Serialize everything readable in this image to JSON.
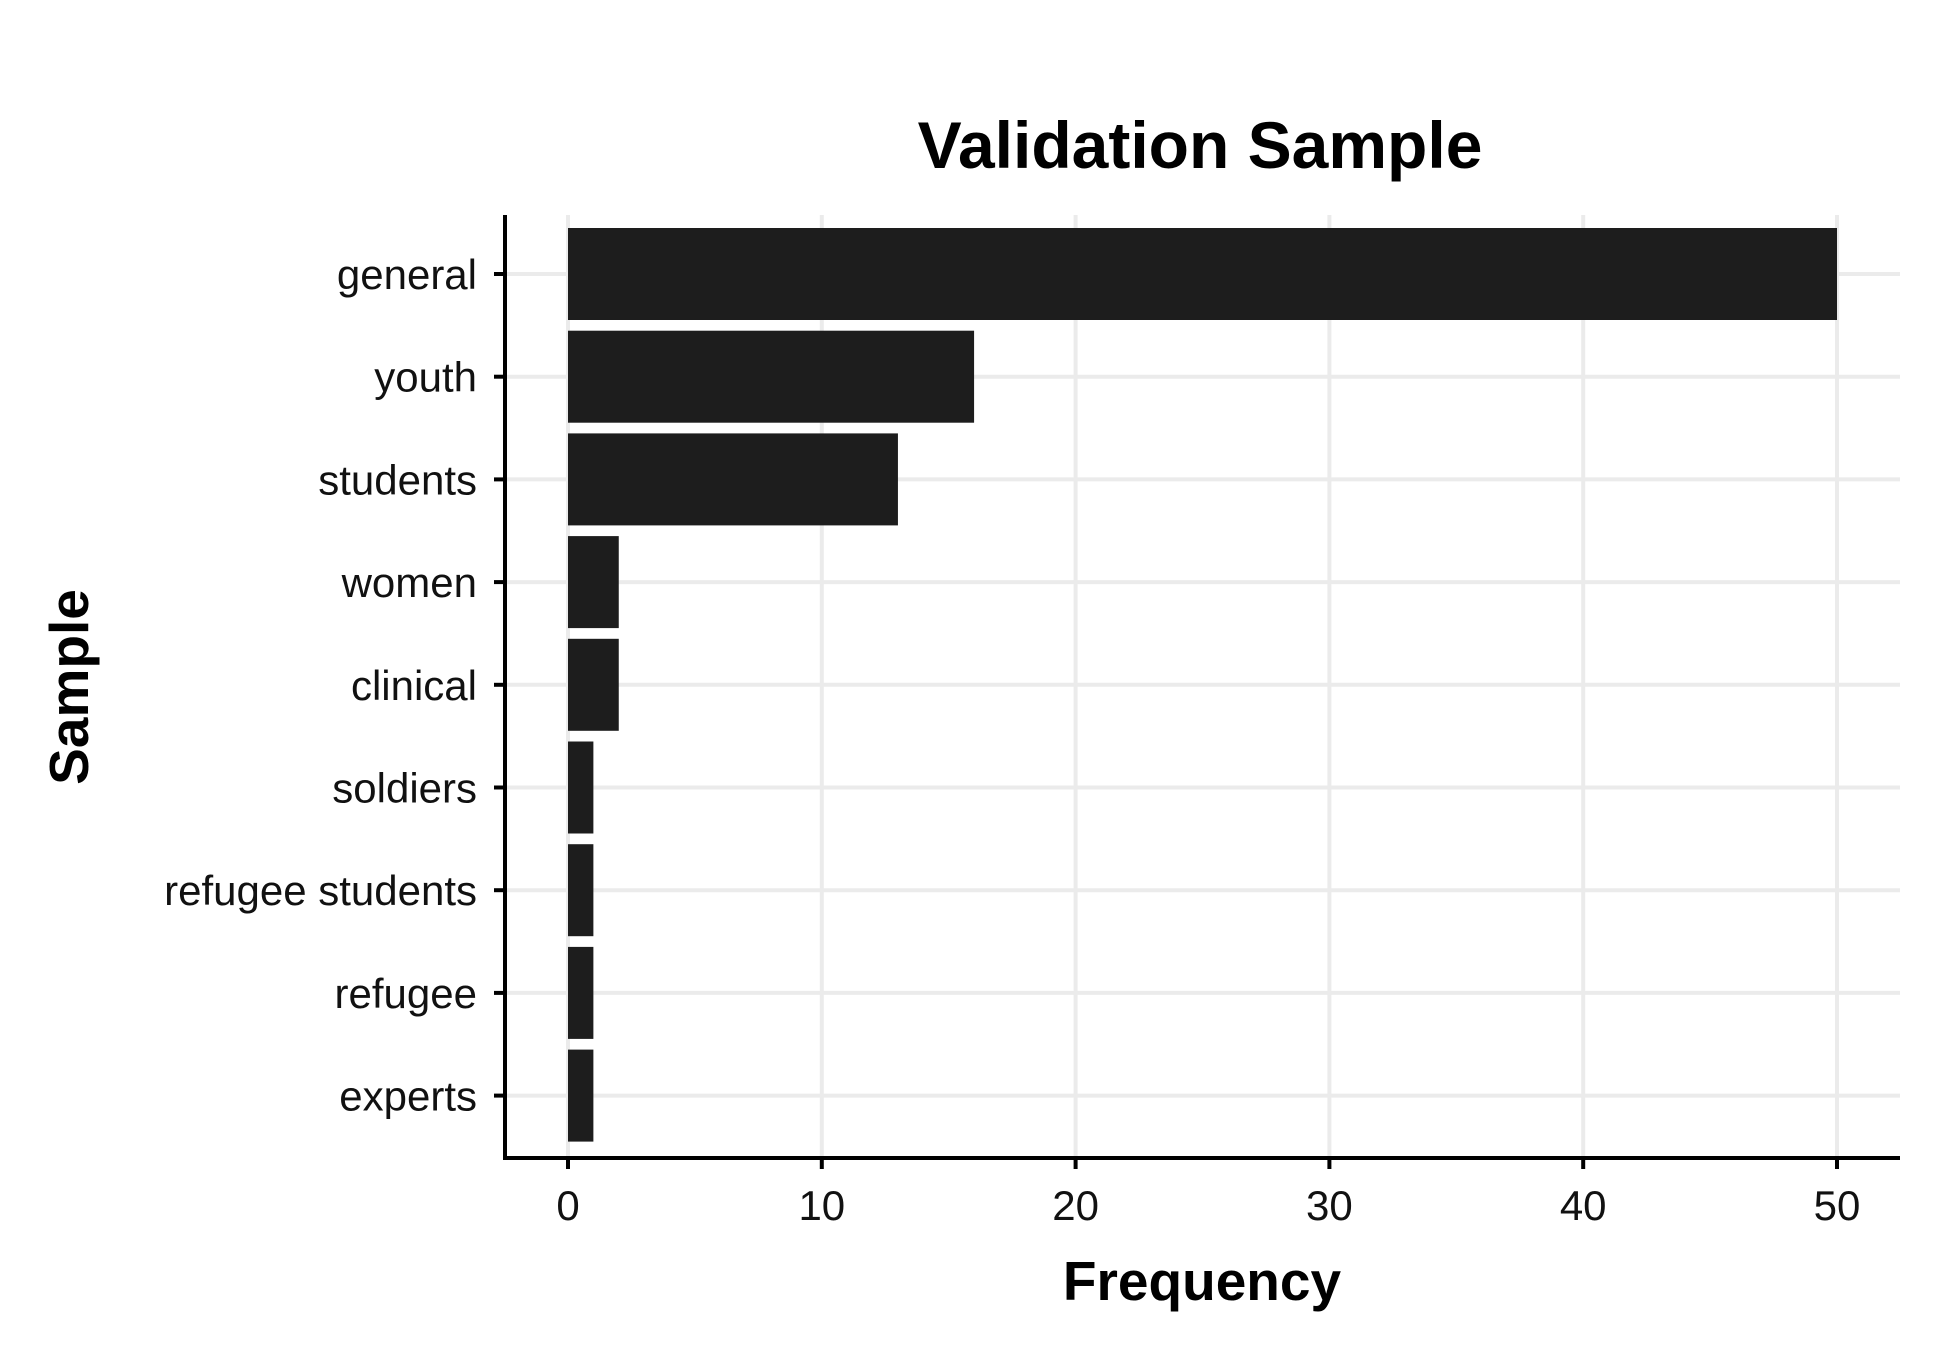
{
  "chart_data": {
    "type": "bar",
    "orientation": "horizontal",
    "title": "Validation Sample",
    "xlabel": "Frequency",
    "ylabel": "Sample",
    "categories": [
      "general",
      "youth",
      "students",
      "women",
      "clinical",
      "soldiers",
      "refugee students",
      "refugee",
      "experts"
    ],
    "values": [
      50,
      16,
      13,
      2,
      2,
      1,
      1,
      1,
      1
    ],
    "xlim": [
      0,
      52.5
    ],
    "xticks": [
      0,
      10,
      20,
      30,
      40,
      50
    ],
    "grid": true,
    "legend": "none",
    "colors": {
      "bar": "#1d1d1d",
      "grid": "#ebebeb",
      "axis": "#000000"
    }
  }
}
